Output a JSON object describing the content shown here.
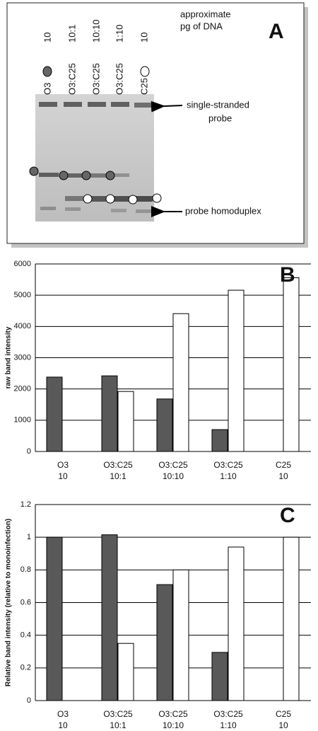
{
  "gel": {
    "panel": "A",
    "heading": [
      "approximate",
      "pg of DNA"
    ],
    "lanes": [
      {
        "amount": "10",
        "name": "O3"
      },
      {
        "amount": "10:1",
        "name": "O3:C25"
      },
      {
        "amount": "10:10",
        "name": "O3:C25"
      },
      {
        "amount": "1:10",
        "name": "O3:C25"
      },
      {
        "amount": "10",
        "name": "C25"
      }
    ],
    "probe_label": [
      "single-stranded",
      "probe"
    ],
    "homoduplex_label": "probe homoduplex"
  },
  "chart_data": [
    {
      "type": "bar",
      "panel": "B",
      "ylabel": "raw band intensity",
      "categories": [
        [
          "O3",
          "10"
        ],
        [
          "O3:C25",
          "10:1"
        ],
        [
          "O3:C25",
          "10:10"
        ],
        [
          "O3:C25",
          "1:10"
        ],
        [
          "C25",
          "10"
        ]
      ],
      "series": [
        {
          "color": "#595959",
          "values": [
            2380,
            2420,
            1680,
            700,
            null
          ]
        },
        {
          "color": "#ffffff",
          "values": [
            null,
            1920,
            4410,
            5160,
            5560
          ]
        }
      ],
      "ylim": [
        0,
        6000
      ],
      "yticks": [
        0,
        1000,
        2000,
        3000,
        4000,
        5000,
        6000
      ],
      "grid": true
    },
    {
      "type": "bar",
      "panel": "C",
      "ylabel": "Relative band intensity (relative to monoinfection)",
      "categories": [
        [
          "O3",
          "10"
        ],
        [
          "O3:C25",
          "10:1"
        ],
        [
          "O3:C25",
          "10:10"
        ],
        [
          "O3:C25",
          "1:10"
        ],
        [
          "C25",
          "10"
        ]
      ],
      "series": [
        {
          "color": "#595959",
          "values": [
            1.0,
            1.015,
            0.71,
            0.295,
            null
          ]
        },
        {
          "color": "#ffffff",
          "values": [
            null,
            0.35,
            0.8,
            0.94,
            1.0
          ]
        }
      ],
      "ylim": [
        0,
        1.2
      ],
      "yticks": [
        0,
        0.2,
        0.4,
        0.6,
        0.8,
        1,
        1.2
      ],
      "grid": true
    }
  ]
}
